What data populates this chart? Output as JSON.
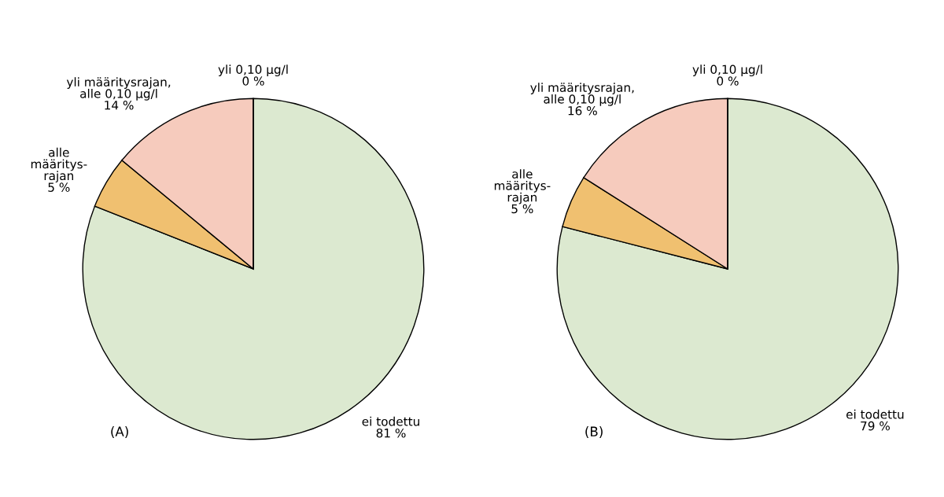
{
  "chart_data": [
    {
      "type": "pie",
      "title": "(A)",
      "categories": [
        "ei todettu",
        "alle\nmääritys-\nrajan",
        "yli määritysrajan,\nalle 0,10 µg/l",
        "yli 0,10 µg/l"
      ],
      "values": [
        81,
        5,
        14,
        0
      ],
      "colors": [
        "#dce9d0",
        "#f0c070",
        "#f6cbbd",
        "#f6cbbd"
      ],
      "value_labels": [
        "81 %",
        "5 %",
        "14 %",
        "0 %"
      ]
    },
    {
      "type": "pie",
      "title": "(B)",
      "categories": [
        "ei todettu",
        "alle\nmääritys-\nrajan",
        "yli määritysrajan,\nalle 0,10 µg/l",
        "yli 0,10 µg/l"
      ],
      "values": [
        79,
        5,
        16,
        0
      ],
      "colors": [
        "#dce9d0",
        "#f0c070",
        "#f6cbbd",
        "#f6cbbd"
      ],
      "value_labels": [
        "79 %",
        "5 %",
        "16 %",
        "0 %"
      ]
    }
  ]
}
